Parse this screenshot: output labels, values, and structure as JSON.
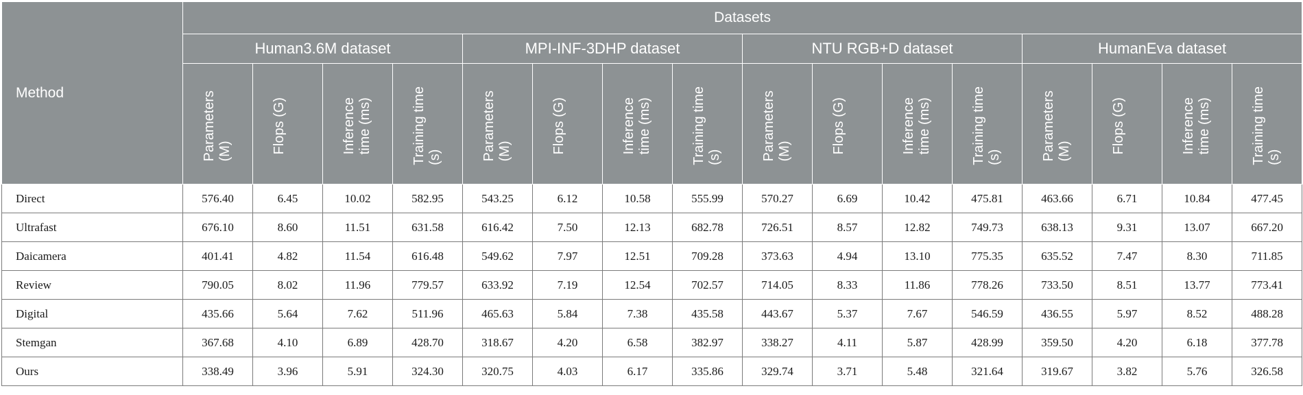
{
  "table": {
    "method_header": "Method",
    "group_header": "Datasets",
    "datasets": [
      "Human3.6M dataset",
      "MPI-INF-3DHP dataset",
      "NTU RGB+D dataset",
      "HumanEva dataset"
    ],
    "metrics": [
      "Parameters\n(M)",
      "Flops (G)",
      "Inference\ntime (ms)",
      "Training time\n(s)"
    ],
    "rows": [
      {
        "method": "Direct",
        "values": [
          "576.40",
          "6.45",
          "10.02",
          "582.95",
          "543.25",
          "6.12",
          "10.58",
          "555.99",
          "570.27",
          "6.69",
          "10.42",
          "475.81",
          "463.66",
          "6.71",
          "10.84",
          "477.45"
        ]
      },
      {
        "method": "Ultrafast",
        "values": [
          "676.10",
          "8.60",
          "11.51",
          "631.58",
          "616.42",
          "7.50",
          "12.13",
          "682.78",
          "726.51",
          "8.57",
          "12.82",
          "749.73",
          "638.13",
          "9.31",
          "13.07",
          "667.20"
        ]
      },
      {
        "method": "Daicamera",
        "values": [
          "401.41",
          "4.82",
          "11.54",
          "616.48",
          "549.62",
          "7.97",
          "12.51",
          "709.28",
          "373.63",
          "4.94",
          "13.10",
          "775.35",
          "635.52",
          "7.47",
          "8.30",
          "711.85"
        ]
      },
      {
        "method": "Review",
        "values": [
          "790.05",
          "8.02",
          "11.96",
          "779.57",
          "633.92",
          "7.19",
          "12.54",
          "702.57",
          "714.05",
          "8.33",
          "11.86",
          "778.26",
          "733.50",
          "8.51",
          "13.77",
          "773.41"
        ]
      },
      {
        "method": "Digital",
        "values": [
          "435.66",
          "5.64",
          "7.62",
          "511.96",
          "465.63",
          "5.84",
          "7.38",
          "435.58",
          "443.67",
          "5.37",
          "7.67",
          "546.59",
          "436.55",
          "5.97",
          "8.52",
          "488.28"
        ]
      },
      {
        "method": "Stemgan",
        "values": [
          "367.68",
          "4.10",
          "6.89",
          "428.70",
          "318.67",
          "4.20",
          "6.58",
          "382.97",
          "338.27",
          "4.11",
          "5.87",
          "428.99",
          "359.50",
          "4.20",
          "6.18",
          "377.78"
        ]
      },
      {
        "method": "Ours",
        "values": [
          "338.49",
          "3.96",
          "5.91",
          "324.30",
          "320.75",
          "4.03",
          "6.17",
          "335.86",
          "329.74",
          "3.71",
          "5.48",
          "321.64",
          "319.67",
          "3.82",
          "5.76",
          "326.58"
        ]
      }
    ]
  }
}
